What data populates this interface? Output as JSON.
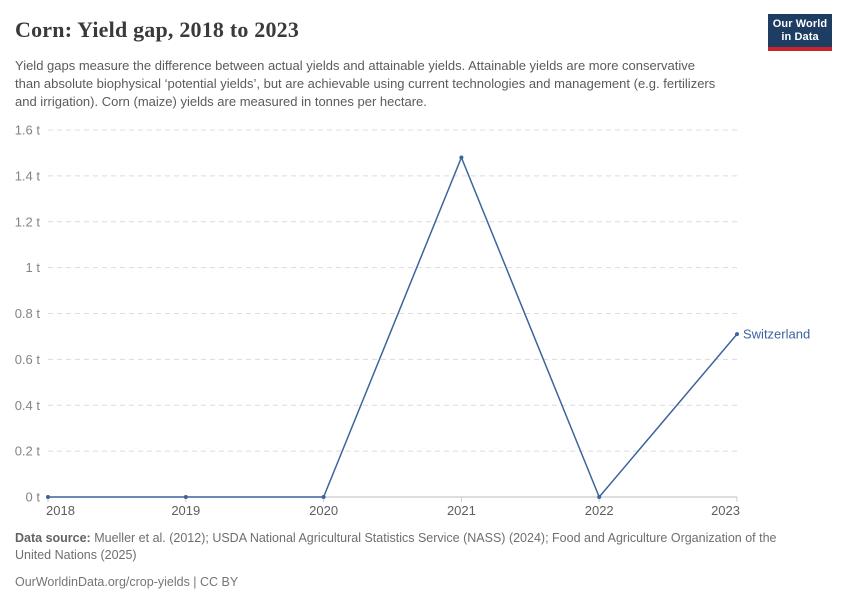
{
  "header": {
    "title": "Corn: Yield gap, 2018 to 2023",
    "logo": {
      "line1": "Our World",
      "line2": "in Data",
      "bg_color": "#1d3d63",
      "accent_color": "#ca2428"
    }
  },
  "subtitle": "Yield gaps measure the difference between actual yields and attainable yields. Attainable yields are more conservative than absolute biophysical ‘potential yields’, but are achievable using current technologies and management (e.g. fertilizers and irrigation). Corn (maize) yields are measured in tonnes per hectare.",
  "chart_data": {
    "type": "line",
    "title": "Corn: Yield gap, 2018 to 2023",
    "x": [
      2018,
      2019,
      2020,
      2021,
      2022,
      2023
    ],
    "series": [
      {
        "name": "Switzerland",
        "values": [
          0,
          0,
          0,
          1.48,
          0,
          0.71
        ],
        "color": "#3d649d"
      }
    ],
    "xlabel": "",
    "ylabel": "",
    "unit_suffix": " t",
    "ylim": [
      0,
      1.6
    ],
    "ytick_step": 0.2,
    "ytick_labels": [
      "0 t",
      "0.2 t",
      "0.4 t",
      "0.6 t",
      "0.8 t",
      "1 t",
      "1.2 t",
      "1.4 t",
      "1.6 t"
    ],
    "grid": "horizontal-dashed",
    "grid_color": "#dcdcdc",
    "axis_color": "#bcbcbc",
    "tick_label_color_y": "#848484",
    "tick_label_color_x": "#5e5e5e",
    "legend": "end-of-line-label"
  },
  "footer": {
    "source_label": "Data source:",
    "source_text": " Mueller et al. (2012); USDA National Agricultural Statistics Service (NASS) (2024); Food and Agriculture Organization of the United Nations (2025)",
    "link_line": "OurWorldinData.org/crop-yields | CC BY"
  }
}
